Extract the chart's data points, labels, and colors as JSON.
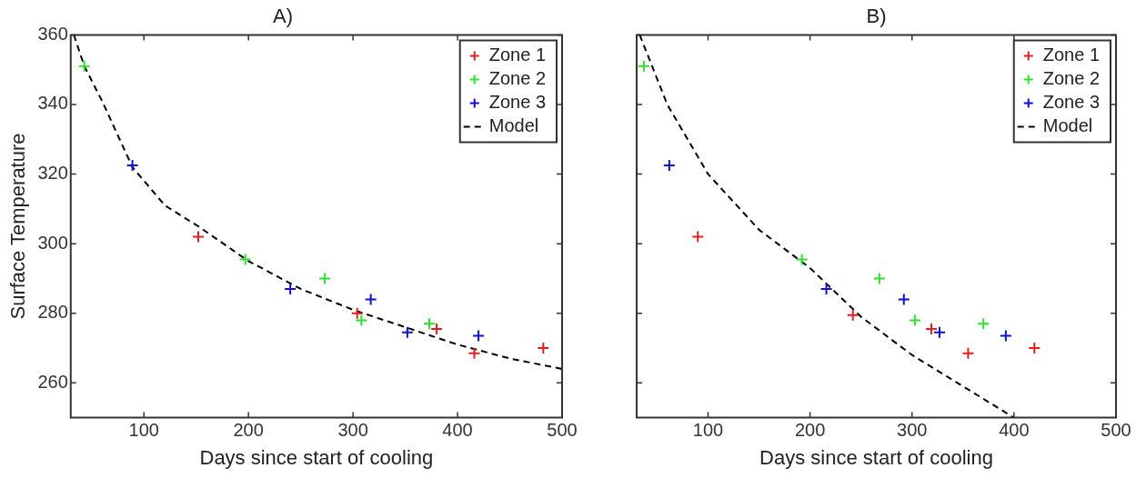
{
  "chart_data": [
    {
      "type": "scatter",
      "title": "A)",
      "xlabel": "Days since start of cooling",
      "ylabel": "Surface Temperature",
      "xlim": [
        30,
        500
      ],
      "xticks": [
        100,
        200,
        300,
        400,
        500
      ],
      "ylim": [
        250,
        360
      ],
      "yticks": [
        260,
        280,
        300,
        320,
        340,
        360
      ],
      "grid": false,
      "legend": "top right",
      "marker": "cross",
      "series": [
        {
          "name": "Zone 1",
          "color": "#e02020",
          "x": [
            152,
            304,
            380,
            416,
            482
          ],
          "values": [
            302,
            280,
            275.5,
            268.5,
            270
          ]
        },
        {
          "name": "Zone 2",
          "color": "#30e030",
          "x": [
            43,
            197,
            273,
            308,
            373
          ],
          "values": [
            351,
            295.5,
            290,
            278,
            277
          ]
        },
        {
          "name": "Zone 3",
          "color": "#1010d0",
          "x": [
            89,
            240,
            317,
            352,
            420
          ],
          "values": [
            322.5,
            287,
            284,
            274.5,
            273.5
          ]
        },
        {
          "name": "Model",
          "type": "line",
          "color": "#000000",
          "marker": "none",
          "line_style": "dashed",
          "x": [
            33,
            43,
            60,
            89,
            120,
            152,
            200,
            250,
            300,
            350,
            400,
            450,
            500
          ],
          "values": [
            360,
            351,
            341,
            322,
            311,
            305,
            295,
            287,
            281,
            276,
            271,
            267,
            264
          ]
        }
      ]
    },
    {
      "type": "scatter",
      "title": "B)",
      "xlabel": "Days since start of cooling",
      "xlim": [
        30,
        500
      ],
      "xticks": [
        100,
        200,
        300,
        400,
        500
      ],
      "ylim": [
        250,
        360
      ],
      "yticks": [
        260,
        280,
        300,
        320,
        340,
        360
      ],
      "tick_labels": "x",
      "grid": false,
      "legend": "top right",
      "marker": "cross",
      "series": [
        {
          "name": "Zone 1",
          "color": "#e02020",
          "x": [
            90,
            242,
            319,
            355,
            420
          ],
          "values": [
            302,
            279.5,
            275.5,
            268.5,
            270
          ]
        },
        {
          "name": "Zone 2",
          "color": "#30e030",
          "x": [
            37,
            192,
            268,
            303,
            370
          ],
          "values": [
            351,
            295.5,
            290,
            278,
            277
          ]
        },
        {
          "name": "Zone 3",
          "color": "#1010d0",
          "x": [
            62,
            216,
            292,
            327,
            392
          ],
          "values": [
            322.5,
            287,
            284,
            274.5,
            273.5
          ]
        },
        {
          "name": "Model",
          "type": "line",
          "color": "#000000",
          "marker": "none",
          "line_style": "dashed",
          "x": [
            33,
            60,
            100,
            150,
            200,
            250,
            300,
            350,
            400
          ],
          "values": [
            360,
            340,
            320,
            304,
            293,
            279,
            268,
            259,
            250
          ]
        }
      ]
    }
  ]
}
